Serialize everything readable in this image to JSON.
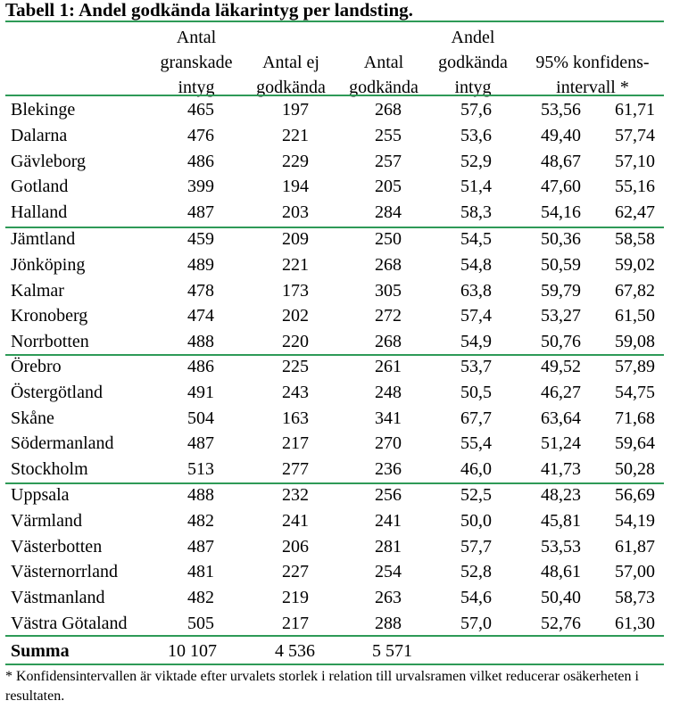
{
  "title": "Tabell 1: Andel godkända läkarintyg per landsting.",
  "headers": {
    "granskade": [
      "Antal",
      "granskade",
      "intyg"
    ],
    "ej_godkanda": [
      "Antal ej",
      "godkända"
    ],
    "godkanda": [
      "Antal",
      "godkända"
    ],
    "andel": [
      "Andel",
      "godkända",
      "intyg"
    ],
    "konfidens": [
      "95% konfidens-",
      "intervall *"
    ]
  },
  "rows": [
    {
      "name": "Blekinge",
      "granskade": "465",
      "ej_godkanda": "197",
      "godkanda": "268",
      "andel": "57,6",
      "ki_low": "53,56",
      "ki_high": "61,71"
    },
    {
      "name": "Dalarna",
      "granskade": "476",
      "ej_godkanda": "221",
      "godkanda": "255",
      "andel": "53,6",
      "ki_low": "49,40",
      "ki_high": "57,74"
    },
    {
      "name": "Gävleborg",
      "granskade": "486",
      "ej_godkanda": "229",
      "godkanda": "257",
      "andel": "52,9",
      "ki_low": "48,67",
      "ki_high": "57,10"
    },
    {
      "name": "Gotland",
      "granskade": "399",
      "ej_godkanda": "194",
      "godkanda": "205",
      "andel": "51,4",
      "ki_low": "47,60",
      "ki_high": "55,16"
    },
    {
      "name": "Halland",
      "granskade": "487",
      "ej_godkanda": "203",
      "godkanda": "284",
      "andel": "58,3",
      "ki_low": "54,16",
      "ki_high": "62,47"
    },
    {
      "name": "Jämtland",
      "granskade": "459",
      "ej_godkanda": "209",
      "godkanda": "250",
      "andel": "54,5",
      "ki_low": "50,36",
      "ki_high": "58,58"
    },
    {
      "name": "Jönköping",
      "granskade": "489",
      "ej_godkanda": "221",
      "godkanda": "268",
      "andel": "54,8",
      "ki_low": "50,59",
      "ki_high": "59,02"
    },
    {
      "name": "Kalmar",
      "granskade": "478",
      "ej_godkanda": "173",
      "godkanda": "305",
      "andel": "63,8",
      "ki_low": "59,79",
      "ki_high": "67,82"
    },
    {
      "name": "Kronoberg",
      "granskade": "474",
      "ej_godkanda": "202",
      "godkanda": "272",
      "andel": "57,4",
      "ki_low": "53,27",
      "ki_high": "61,50"
    },
    {
      "name": "Norrbotten",
      "granskade": "488",
      "ej_godkanda": "220",
      "godkanda": "268",
      "andel": "54,9",
      "ki_low": "50,76",
      "ki_high": "59,08"
    },
    {
      "name": "Örebro",
      "granskade": "486",
      "ej_godkanda": "225",
      "godkanda": "261",
      "andel": "53,7",
      "ki_low": "49,52",
      "ki_high": "57,89"
    },
    {
      "name": "Östergötland",
      "granskade": "491",
      "ej_godkanda": "243",
      "godkanda": "248",
      "andel": "50,5",
      "ki_low": "46,27",
      "ki_high": "54,75"
    },
    {
      "name": "Skåne",
      "granskade": "504",
      "ej_godkanda": "163",
      "godkanda": "341",
      "andel": "67,7",
      "ki_low": "63,64",
      "ki_high": "71,68"
    },
    {
      "name": "Södermanland",
      "granskade": "487",
      "ej_godkanda": "217",
      "godkanda": "270",
      "andel": "55,4",
      "ki_low": "51,24",
      "ki_high": "59,64"
    },
    {
      "name": "Stockholm",
      "granskade": "513",
      "ej_godkanda": "277",
      "godkanda": "236",
      "andel": "46,0",
      "ki_low": "41,73",
      "ki_high": "50,28"
    },
    {
      "name": "Uppsala",
      "granskade": "488",
      "ej_godkanda": "232",
      "godkanda": "256",
      "andel": "52,5",
      "ki_low": "48,23",
      "ki_high": "56,69"
    },
    {
      "name": "Värmland",
      "granskade": "482",
      "ej_godkanda": "241",
      "godkanda": "241",
      "andel": "50,0",
      "ki_low": "45,81",
      "ki_high": "54,19"
    },
    {
      "name": "Västerbotten",
      "granskade": "487",
      "ej_godkanda": "206",
      "godkanda": "281",
      "andel": "57,7",
      "ki_low": "53,53",
      "ki_high": "61,87"
    },
    {
      "name": "Västernorrland",
      "granskade": "481",
      "ej_godkanda": "227",
      "godkanda": "254",
      "andel": "52,8",
      "ki_low": "48,61",
      "ki_high": "57,00"
    },
    {
      "name": "Västmanland",
      "granskade": "482",
      "ej_godkanda": "219",
      "godkanda": "263",
      "andel": "54,6",
      "ki_low": "50,40",
      "ki_high": "58,73"
    },
    {
      "name": "Västra Götaland",
      "granskade": "505",
      "ej_godkanda": "217",
      "godkanda": "288",
      "andel": "57,0",
      "ki_low": "52,76",
      "ki_high": "61,30"
    }
  ],
  "summary": {
    "label": "Summa",
    "granskade": "10 107",
    "ej_godkanda": "4 536",
    "godkanda": "5 571"
  },
  "footnote": "* Konfidensintervallen är viktade efter urvalets storlek i relation till urvalsramen vilket reducerar osäkerheten i resultaten.",
  "colors": {
    "rule": "#2e9a57"
  }
}
